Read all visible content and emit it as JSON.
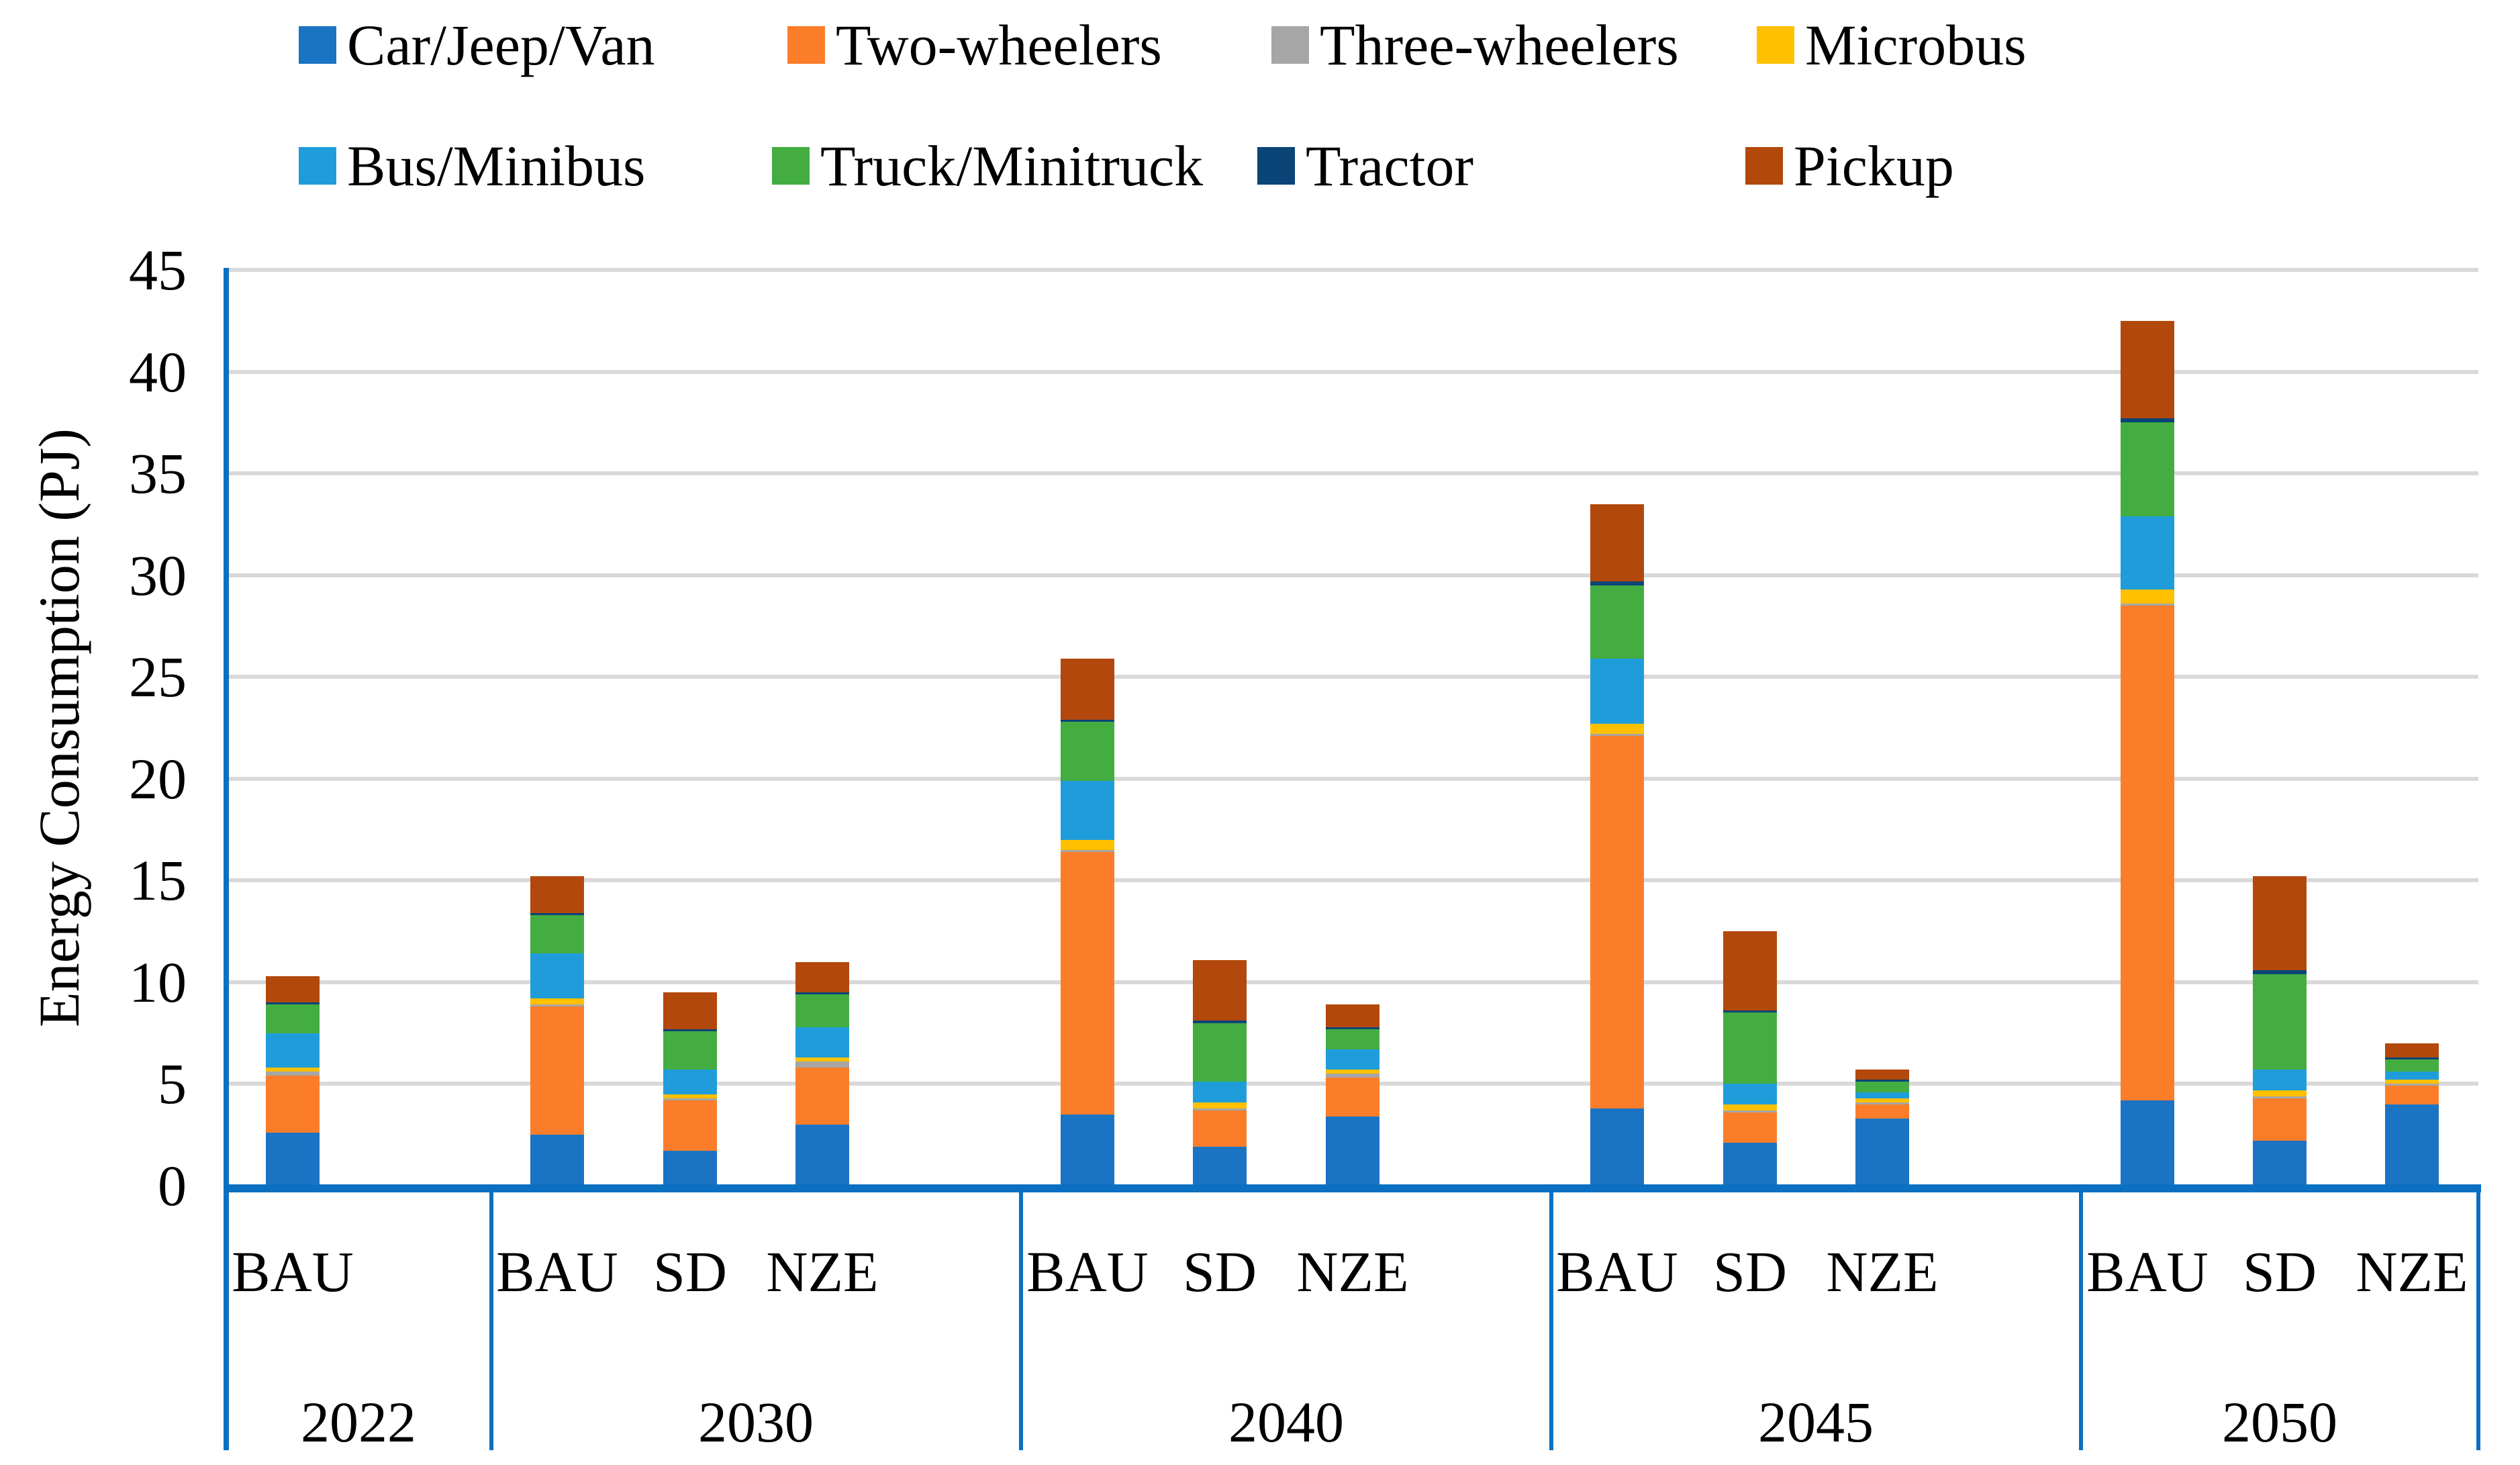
{
  "figure": {
    "background": "#FFFFFF"
  },
  "legend": {
    "items": [
      {
        "label": "Car/Jeep/Van",
        "color": "#1B73C4"
      },
      {
        "label": "Two-wheelers",
        "color": "#FC7D29"
      },
      {
        "label": "Three-wheelers",
        "color": "#A6A6A6"
      },
      {
        "label": "Microbus",
        "color": "#FFC000"
      },
      {
        "label": "Bus/Minibus",
        "color": "#1F9DDB"
      },
      {
        "label": "Truck/Minitruck",
        "color": "#44AD41"
      },
      {
        "label": "Tractor",
        "color": "#0B4477"
      },
      {
        "label": "Pickup",
        "color": "#B2480C"
      }
    ]
  },
  "y_axis": {
    "title": "Energy Consumption (PJ)",
    "min": 0,
    "max": 45,
    "tick_step": 5,
    "ticks": [
      0,
      5,
      10,
      15,
      20,
      25,
      30,
      35,
      40,
      45
    ],
    "gridline_color": "#D9D9D9",
    "axis_color": "#0C70C2",
    "text_color": "#000000"
  },
  "x_axis": {
    "groups": [
      {
        "year": "2022",
        "scenarios": [
          "BAU"
        ]
      },
      {
        "year": "2030",
        "scenarios": [
          "BAU",
          "SD",
          "NZE"
        ]
      },
      {
        "year": "2040",
        "scenarios": [
          "BAU",
          "SD",
          "NZE"
        ]
      },
      {
        "year": "2045",
        "scenarios": [
          "BAU",
          "SD",
          "NZE"
        ]
      },
      {
        "year": "2050",
        "scenarios": [
          "BAU",
          "SD",
          "NZE"
        ]
      }
    ]
  },
  "chart_data": {
    "type": "bar",
    "stacked": true,
    "title": "",
    "xlabel": "",
    "ylabel": "Energy Consumption (PJ)",
    "ylim": [
      0,
      45
    ],
    "grid": true,
    "legend_position": "top",
    "categories": [
      "2022 BAU",
      "2030 BAU",
      "2030 SD",
      "2030 NZE",
      "2040 BAU",
      "2040 SD",
      "2040 NZE",
      "2045 BAU",
      "2045 SD",
      "2045 NZE",
      "2050 BAU",
      "2050 SD",
      "2050 NZE"
    ],
    "series": [
      {
        "name": "Car/Jeep/Van",
        "color": "#1B73C4",
        "values": [
          2.6,
          2.5,
          1.7,
          3.0,
          3.5,
          1.9,
          3.4,
          3.8,
          2.1,
          3.3,
          4.2,
          2.2,
          4.0
        ]
      },
      {
        "name": "Two-wheelers",
        "color": "#FC7D29",
        "values": [
          2.8,
          6.3,
          2.5,
          2.8,
          12.9,
          1.8,
          1.9,
          18.3,
          1.5,
          0.7,
          24.3,
          2.1,
          0.9
        ]
      },
      {
        "name": "Three-wheelers",
        "color": "#A6A6A6",
        "values": [
          0.2,
          0.1,
          0.1,
          0.3,
          0.1,
          0.1,
          0.2,
          0.1,
          0.1,
          0.1,
          0.1,
          0.1,
          0.1
        ]
      },
      {
        "name": "Microbus",
        "color": "#FFC000",
        "values": [
          0.2,
          0.3,
          0.2,
          0.2,
          0.5,
          0.3,
          0.2,
          0.5,
          0.3,
          0.2,
          0.7,
          0.3,
          0.2
        ]
      },
      {
        "name": "Bus/Minibus",
        "color": "#1F9DDB",
        "values": [
          1.7,
          2.2,
          1.2,
          1.5,
          2.9,
          1.0,
          1.0,
          3.2,
          1.0,
          0.3,
          3.6,
          1.0,
          0.4
        ]
      },
      {
        "name": "Truck/Minitruck",
        "color": "#44AD41",
        "values": [
          1.4,
          1.9,
          1.9,
          1.6,
          2.9,
          2.9,
          1.0,
          3.6,
          3.5,
          0.5,
          4.6,
          4.7,
          0.6
        ]
      },
      {
        "name": "Tractor",
        "color": "#0B4477",
        "values": [
          0.1,
          0.1,
          0.1,
          0.1,
          0.1,
          0.1,
          0.1,
          0.2,
          0.1,
          0.1,
          0.2,
          0.2,
          0.1
        ]
      },
      {
        "name": "Pickup",
        "color": "#B2480C",
        "values": [
          1.3,
          1.8,
          1.8,
          1.5,
          3.0,
          3.0,
          1.1,
          3.8,
          3.9,
          0.5,
          4.8,
          4.6,
          0.7
        ]
      }
    ],
    "bar_totals": [
      10.3,
      15.2,
      9.5,
      11.0,
      25.9,
      11.1,
      8.9,
      33.5,
      12.5,
      5.7,
      42.5,
      15.2,
      7.0
    ]
  }
}
